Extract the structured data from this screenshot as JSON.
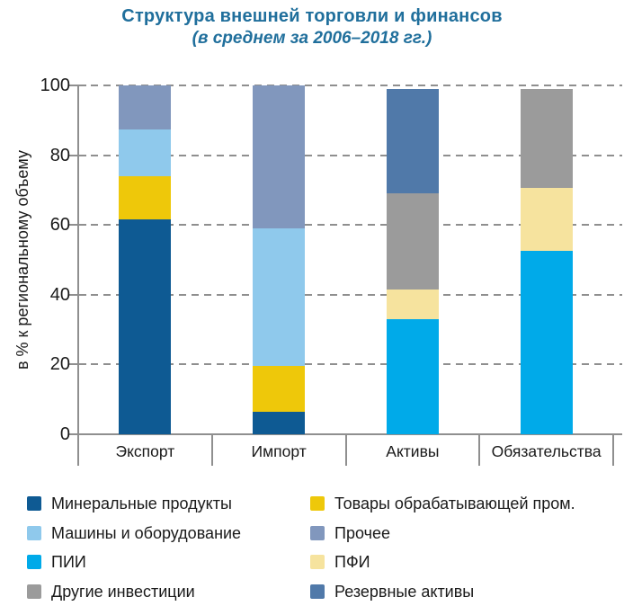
{
  "title": {
    "line1": "Структура внешней торговли и финансов",
    "line2": "(в среднем за 2006–2018 гг.)"
  },
  "colors": {
    "title_text": "#206f9c",
    "axis": "#8f8f8f",
    "text": "#1a1a1a"
  },
  "chart_data": {
    "type": "bar",
    "subtype": "stacked-vertical",
    "title": "Структура внешней торговли и финансов",
    "subtitle": "(в среднем за 2006–2018 гг.)",
    "categories": [
      "Экспорт",
      "Импорт",
      "Активы",
      "Обязательства"
    ],
    "series": [
      {
        "name": "Минеральные продукты",
        "color": "#0e5a93",
        "values": [
          61.5,
          6.5,
          0,
          0
        ]
      },
      {
        "name": "Товары обрабатывающей пром.",
        "color": "#eec80a",
        "values": [
          12.5,
          13,
          0,
          0
        ]
      },
      {
        "name": "Машины и оборудование",
        "color": "#8fc9ec",
        "values": [
          13.5,
          39.5,
          0,
          0
        ]
      },
      {
        "name": "Прочее",
        "color": "#8197bd",
        "values": [
          12.5,
          41,
          0,
          0
        ]
      },
      {
        "name": "ПИИ",
        "color": "#00aae9",
        "values": [
          0,
          0,
          33,
          52.5
        ]
      },
      {
        "name": "ПФИ",
        "color": "#f6e39e",
        "values": [
          0,
          0,
          8.5,
          18
        ]
      },
      {
        "name": "Другие инвестиции",
        "color": "#9b9b9b",
        "values": [
          0,
          0,
          27.5,
          28.5
        ]
      },
      {
        "name": "Резервные активы",
        "color": "#5079a9",
        "values": [
          0,
          0,
          30,
          0
        ]
      }
    ],
    "ylabel": "в % к региональному объему",
    "xlabel": "",
    "ylim": [
      0,
      100
    ],
    "yticks": [
      0,
      20,
      40,
      60,
      80,
      100
    ],
    "grid": "horizontal-dashed",
    "legend_position": "bottom-two-columns"
  },
  "legend": {
    "left": [
      {
        "label": "Минеральные продукты",
        "color": "#0e5a93"
      },
      {
        "label": "Машины и оборудование",
        "color": "#8fc9ec"
      },
      {
        "label": "ПИИ",
        "color": "#00aae9"
      },
      {
        "label": "Другие инвестиции",
        "color": "#9b9b9b"
      }
    ],
    "right": [
      {
        "label": "Товары обрабатывающей пром.",
        "color": "#eec80a"
      },
      {
        "label": "Прочее",
        "color": "#8197bd"
      },
      {
        "label": "ПФИ",
        "color": "#f6e39e"
      },
      {
        "label": "Резервные активы",
        "color": "#5079a9"
      }
    ]
  }
}
